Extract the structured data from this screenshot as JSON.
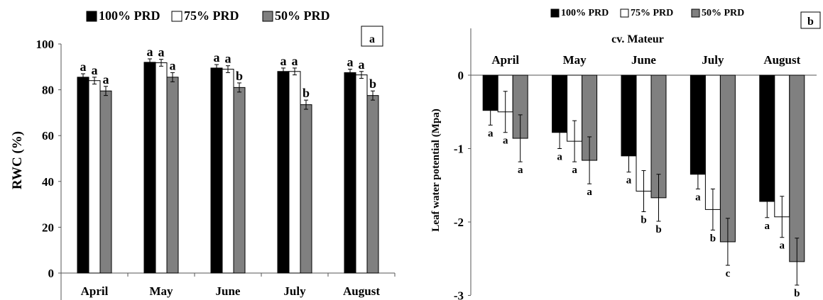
{
  "chart_data": [
    {
      "type": "bar",
      "panel_label": "a",
      "categories": [
        "April",
        "May",
        "June",
        "July",
        "August"
      ],
      "ylabel": "RWC (%)",
      "ylim": [
        0,
        100
      ],
      "yticks": [
        0,
        20,
        40,
        60,
        80,
        100
      ],
      "legend_position": "top",
      "series": [
        {
          "name": "100% PRD",
          "color": "#000000",
          "values": [
            85.5,
            92.0,
            89.5,
            88.0,
            87.5
          ],
          "errors": [
            1.5,
            1.5,
            1.5,
            1.5,
            1.5
          ],
          "letters": [
            "a",
            "a",
            "a",
            "a",
            "a"
          ]
        },
        {
          "name": "75% PRD",
          "color": "#ffffff",
          "values": [
            84.0,
            91.8,
            89.0,
            88.0,
            86.5
          ],
          "errors": [
            1.5,
            1.5,
            1.5,
            1.5,
            1.5
          ],
          "letters": [
            "a",
            "a",
            "a",
            "a",
            "a"
          ]
        },
        {
          "name": "50% PRD",
          "color": "#808080",
          "values": [
            79.5,
            85.5,
            81.0,
            73.5,
            77.5
          ],
          "errors": [
            2.0,
            2.0,
            2.0,
            2.0,
            2.0
          ],
          "letters": [
            "a",
            "a",
            "b",
            "b",
            "b"
          ]
        }
      ]
    },
    {
      "type": "bar",
      "panel_label": "b",
      "title": "cv. Mateur",
      "categories": [
        "April",
        "May",
        "June",
        "July",
        "August"
      ],
      "ylabel": "Leaf water potential (Mpa)",
      "ylim": [
        -3,
        0.5
      ],
      "yticks": [
        0,
        -1,
        -2,
        -3
      ],
      "legend_position": "top",
      "series": [
        {
          "name": "100% PRD",
          "color": "#000000",
          "values": [
            -0.48,
            -0.78,
            -1.1,
            -1.35,
            -1.72
          ],
          "errors": [
            0.2,
            0.22,
            0.22,
            0.2,
            0.22
          ],
          "letters": [
            "a",
            "a",
            "a",
            "a",
            "a"
          ]
        },
        {
          "name": "75% PRD",
          "color": "#ffffff",
          "values": [
            -0.5,
            -0.9,
            -1.58,
            -1.83,
            -1.93
          ],
          "errors": [
            0.28,
            0.28,
            0.28,
            0.28,
            0.28
          ],
          "letters": [
            "a",
            "a",
            "b",
            "b",
            "a"
          ]
        },
        {
          "name": "50% PRD",
          "color": "#808080",
          "values": [
            -0.86,
            -1.16,
            -1.67,
            -2.27,
            -2.54
          ],
          "errors": [
            0.32,
            0.32,
            0.32,
            0.32,
            0.32
          ],
          "letters": [
            "a",
            "a",
            "b",
            "c",
            "b"
          ]
        }
      ]
    }
  ]
}
